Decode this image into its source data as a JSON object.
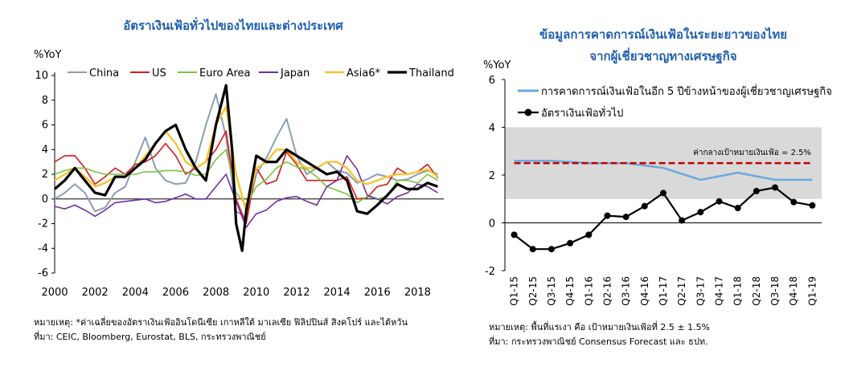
{
  "chart_data": [
    {
      "type": "line",
      "title": "อัตราเงินเฟ้อทั่วไปของไทยและต่างประเทศ",
      "ylabel": "%YoY",
      "xlabel": "",
      "ylim": [
        -6,
        10
      ],
      "xlim": [
        2000,
        2019.3
      ],
      "yticks": [
        -6,
        -4,
        -2,
        0,
        2,
        4,
        6,
        8,
        10
      ],
      "xticks": [
        2000,
        2002,
        2004,
        2006,
        2008,
        2010,
        2012,
        2014,
        2016,
        2018
      ],
      "grid": false,
      "legend": "top",
      "series": [
        {
          "name": "China",
          "color": "#8a9eb5",
          "width": 2,
          "x": [
            2000,
            2000.5,
            2001,
            2001.5,
            2002,
            2002.5,
            2003,
            2003.5,
            2004,
            2004.5,
            2005,
            2005.5,
            2006,
            2006.5,
            2007,
            2007.5,
            2008,
            2008.5,
            2009,
            2009.5,
            2010,
            2010.5,
            2011,
            2011.5,
            2012,
            2012.5,
            2013,
            2013.5,
            2014,
            2014.5,
            2015,
            2015.5,
            2016,
            2016.5,
            2017,
            2017.5,
            2018,
            2018.5,
            2019
          ],
          "y": [
            0,
            0.5,
            1.2,
            0.5,
            -1,
            -0.7,
            0.5,
            1,
            3,
            5,
            2.5,
            1.5,
            1.2,
            1.3,
            3,
            6,
            8.5,
            5,
            -1,
            -1.5,
            2,
            3.3,
            5,
            6.5,
            3.5,
            2,
            2.5,
            3,
            2.3,
            2.1,
            1.3,
            1.6,
            2,
            1.8,
            1.5,
            1.6,
            2,
            2.3,
            2
          ]
        },
        {
          "name": "US",
          "color": "#d7191c",
          "width": 1.6,
          "x": [
            2000,
            2000.5,
            2001,
            2001.5,
            2002,
            2002.5,
            2003,
            2003.5,
            2004,
            2004.5,
            2005,
            2005.5,
            2006,
            2006.5,
            2007,
            2007.5,
            2008,
            2008.5,
            2009,
            2009.5,
            2010,
            2010.5,
            2011,
            2011.5,
            2012,
            2012.5,
            2013,
            2013.5,
            2014,
            2014.5,
            2015,
            2015.5,
            2016,
            2016.5,
            2017,
            2017.5,
            2018,
            2018.5,
            2019
          ],
          "y": [
            3,
            3.5,
            3.5,
            2.5,
            1.2,
            1.8,
            2.5,
            2,
            2.8,
            3,
            3.5,
            4.5,
            3.5,
            2,
            2.5,
            3,
            4,
            5.5,
            0,
            -2,
            2.5,
            1.2,
            1.5,
            3.8,
            2.8,
            1.5,
            1.5,
            1.5,
            1.5,
            1.8,
            0,
            0.1,
            1,
            1.2,
            2.5,
            2,
            2.2,
            2.8,
            1.7
          ]
        },
        {
          "name": "Euro Area",
          "color": "#7dc242",
          "width": 1.6,
          "x": [
            2000,
            2000.5,
            2001,
            2001.5,
            2002,
            2002.5,
            2003,
            2003.5,
            2004,
            2004.5,
            2005,
            2005.5,
            2006,
            2006.5,
            2007,
            2007.5,
            2008,
            2008.5,
            2009,
            2009.5,
            2010,
            2010.5,
            2011,
            2011.5,
            2012,
            2012.5,
            2013,
            2013.5,
            2014,
            2014.5,
            2015,
            2015.5,
            2016,
            2016.5,
            2017,
            2017.5,
            2018,
            2018.5,
            2019
          ],
          "y": [
            2,
            2.3,
            2.5,
            2.5,
            2.2,
            2,
            2,
            2,
            2,
            2.2,
            2.2,
            2.3,
            2.3,
            2.2,
            1.9,
            2,
            3.2,
            4,
            0.5,
            -0.5,
            1,
            1.6,
            2.5,
            3,
            2.6,
            2.4,
            1.8,
            1,
            0.7,
            0.4,
            -0.3,
            0.2,
            0,
            0.2,
            1.5,
            1.5,
            1.3,
            2,
            1.5
          ]
        },
        {
          "name": "Japan",
          "color": "#7030a0",
          "width": 1.6,
          "x": [
            2000,
            2000.5,
            2001,
            2001.5,
            2002,
            2002.5,
            2003,
            2003.5,
            2004,
            2004.5,
            2005,
            2005.5,
            2006,
            2006.5,
            2007,
            2007.5,
            2008,
            2008.5,
            2009,
            2009.5,
            2010,
            2010.5,
            2011,
            2011.5,
            2012,
            2012.5,
            2013,
            2013.5,
            2014,
            2014.5,
            2015,
            2015.5,
            2016,
            2016.5,
            2017,
            2017.5,
            2018,
            2018.5,
            2019
          ],
          "y": [
            -0.6,
            -0.8,
            -0.5,
            -0.9,
            -1.4,
            -0.9,
            -0.3,
            -0.2,
            -0.1,
            0,
            -0.3,
            -0.2,
            0.1,
            0.4,
            0,
            0,
            1,
            2,
            -0.2,
            -2.3,
            -1.2,
            -0.9,
            -0.2,
            0.1,
            0.2,
            -0.2,
            -0.5,
            1,
            1.5,
            3.5,
            2.4,
            0.3,
            0,
            -0.4,
            0.2,
            0.5,
            1.2,
            1,
            0.5
          ]
        },
        {
          "name": "Asia6*",
          "color": "#f7c52f",
          "width": 2.4,
          "x": [
            2000,
            2000.5,
            2001,
            2001.5,
            2002,
            2002.5,
            2003,
            2003.5,
            2004,
            2004.5,
            2005,
            2005.5,
            2006,
            2006.5,
            2007,
            2007.5,
            2008,
            2008.5,
            2009,
            2009.5,
            2010,
            2010.5,
            2011,
            2011.5,
            2012,
            2012.5,
            2013,
            2013.5,
            2014,
            2014.5,
            2015,
            2015.5,
            2016,
            2016.5,
            2017,
            2017.5,
            2018,
            2018.5,
            2019
          ],
          "y": [
            1.5,
            2,
            2.5,
            1.8,
            1,
            1.3,
            1.8,
            1.8,
            2.5,
            3.5,
            4.5,
            5.5,
            4.5,
            3,
            2.5,
            3,
            6,
            7.5,
            2,
            -1,
            2.5,
            3,
            4,
            4,
            3,
            2.5,
            2.5,
            3,
            3,
            2.5,
            1.5,
            1.2,
            1.5,
            1.8,
            2,
            2,
            2.2,
            2.4,
            1.8
          ]
        },
        {
          "name": "Thailand",
          "color": "#000000",
          "width": 3.2,
          "x": [
            2000,
            2000.5,
            2001,
            2001.5,
            2002,
            2002.5,
            2003,
            2003.5,
            2004,
            2004.5,
            2005,
            2005.5,
            2006,
            2006.5,
            2007,
            2007.5,
            2008,
            2008.5,
            2008.8,
            2009,
            2009.3,
            2009.5,
            2010,
            2010.5,
            2011,
            2011.5,
            2012,
            2012.5,
            2013,
            2013.5,
            2014,
            2014.5,
            2015,
            2015.5,
            2016,
            2016.5,
            2017,
            2017.5,
            2018,
            2018.5,
            2019
          ],
          "y": [
            0.8,
            1.5,
            2.5,
            1.5,
            0.5,
            0.3,
            1.8,
            1.8,
            2.5,
            3.2,
            4.5,
            5.5,
            6,
            4,
            2.5,
            1.5,
            6,
            9.2,
            4,
            -2,
            -4.2,
            -1,
            3.5,
            3,
            3,
            4,
            3.5,
            3,
            2.5,
            2,
            2.2,
            1.5,
            -1,
            -1.2,
            -0.5,
            0.3,
            1.2,
            0.8,
            0.8,
            1.3,
            1
          ]
        }
      ]
    },
    {
      "type": "line",
      "title": "ข้อมูลการคาดการณ์เงินเฟ้อในระยะยาวของไทย\nจากผู้เชี่ยวชาญทางเศรษฐกิจ",
      "ylabel": "%YoY",
      "xlabel": "",
      "ylim": [
        -2,
        6
      ],
      "yticks": [
        -2,
        0,
        2,
        4,
        6
      ],
      "grid": false,
      "legend": "top-left",
      "shaded_band": [
        1,
        4
      ],
      "target_label": "ค่ากลางเป้าหมายเงินเฟ้อ = 2.5%",
      "categories": [
        "Q1-15",
        "Q2-15",
        "Q3-15",
        "Q4-15",
        "Q1-16",
        "Q2-16",
        "Q3-16",
        "Q4-16",
        "Q1-17",
        "Q2-17",
        "Q3-17",
        "Q4-17",
        "Q1-18",
        "Q2-18",
        "Q3-18",
        "Q4-18",
        "Q1-19"
      ],
      "series": [
        {
          "name": "การคาดการณ์เงินเฟ้อในอีก 5 ปีข้างหน้าของผู้เชี่ยวชาญเศรษฐกิจ",
          "color": "#6fa8dc",
          "width": 2.5,
          "marker": false,
          "values": [
            2.6,
            2.6,
            2.6,
            2.55,
            2.5,
            2.5,
            2.5,
            2.4,
            2.3,
            2.05,
            1.8,
            1.95,
            2.1,
            1.95,
            1.8,
            1.8,
            1.8
          ]
        },
        {
          "name": "อัตราเงินเฟ้อทั่วไป",
          "color": "#000000",
          "width": 2.2,
          "marker": true,
          "values": [
            -0.5,
            -1.1,
            -1.1,
            -0.85,
            -0.5,
            0.3,
            0.25,
            0.7,
            1.25,
            0.1,
            0.45,
            0.9,
            0.62,
            1.33,
            1.48,
            0.87,
            0.73
          ]
        },
        {
          "name": "ค่ากลางเป้าหมายเงินเฟ้อ",
          "color": "#c00000",
          "width": 2.5,
          "dashed": true,
          "values": [
            2.5,
            2.5,
            2.5,
            2.5,
            2.5,
            2.5,
            2.5,
            2.5,
            2.5,
            2.5,
            2.5,
            2.5,
            2.5,
            2.5,
            2.5,
            2.5,
            2.5
          ]
        }
      ]
    }
  ],
  "notes": {
    "left_note": "หมายเหตุ: *ค่าเฉลี่ยของอัตราเงินเฟ้ออินโดนีเซีย เกาหลีใต้ มาเลเซีย ฟิลิปปินส์ สิงคโปร์ และไต้หวัน",
    "left_source": "ที่มา: CEIC, Bloomberg, Eurostat, BLS, กระทรวงพาณิชย์",
    "right_note": "หมายเหตุ: พื้นที่แรเงา คือ เป้าหมายเงินเฟ้อที่ 2.5 ± 1.5%",
    "right_source": "ที่มา: กระทรวงพาณิชย์ Consensus Forecast และ ธปท."
  }
}
